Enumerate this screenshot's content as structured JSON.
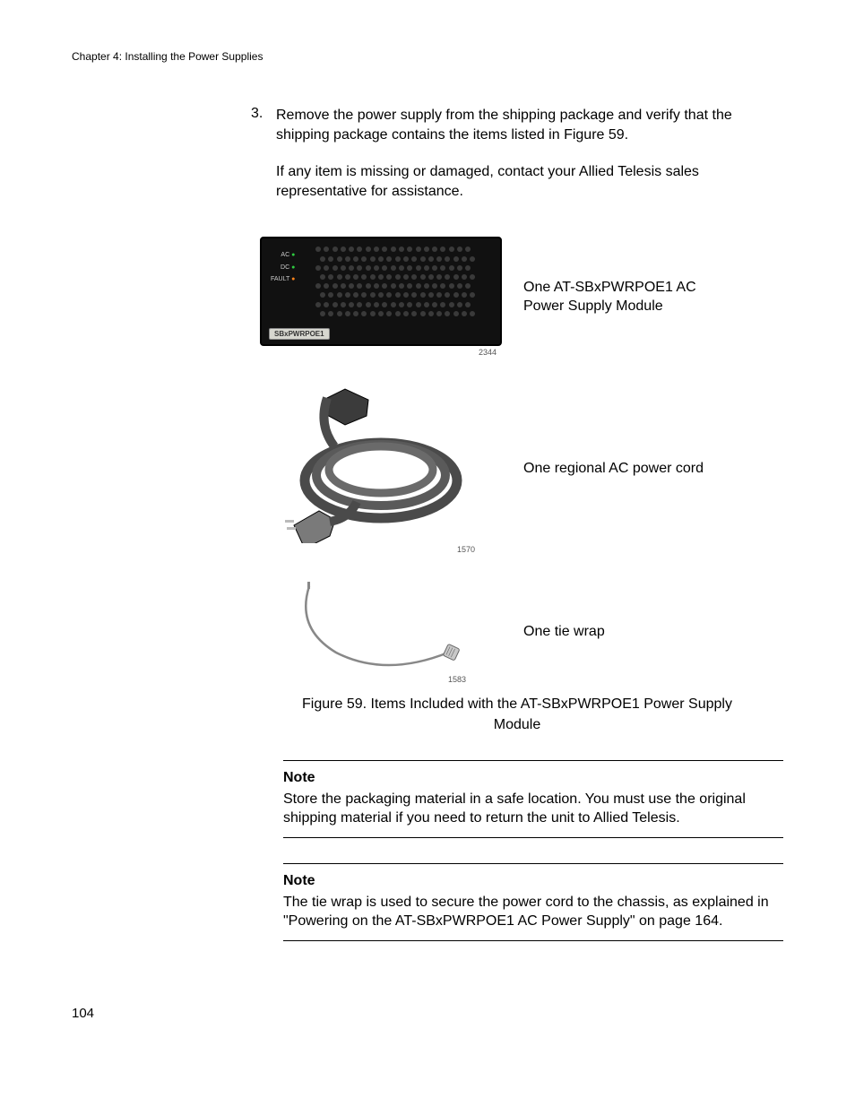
{
  "chapter_header": "Chapter 4: Installing the Power Supplies",
  "step": {
    "number": "3.",
    "para1": "Remove the power supply from the shipping package and verify that the shipping package contains the items listed in Figure 59.",
    "para2": "If any item is missing or damaged, contact your Allied Telesis sales representative for assistance."
  },
  "psu_illustration": {
    "leds": {
      "ac": "AC",
      "dc": "DC",
      "blank": "",
      "fault": "FAULT"
    },
    "tag_text": "SBxPWRPOE1",
    "vent_rows": 8,
    "vent_cols": 19,
    "img_number": "2344"
  },
  "cord_illustration": {
    "img_number": "1570"
  },
  "tie_illustration": {
    "img_number": "1583"
  },
  "items": {
    "psu_label_l1": "One AT-SBxPWRPOE1 AC",
    "psu_label_l2": "Power Supply Module",
    "cord_label": "One regional AC power cord",
    "tie_label": "One tie wrap"
  },
  "figure_caption_l1": "Figure 59. Items Included with the AT-SBxPWRPOE1 Power Supply",
  "figure_caption_l2": "Module",
  "note1": {
    "label": "Note",
    "body": "Store the packaging material in a safe location. You must use the original shipping material if you need to return the unit to Allied Telesis."
  },
  "note2": {
    "label": "Note",
    "body": "The tie wrap is used to secure the power cord to the chassis, as explained in \"Powering on the AT-SBxPWRPOE1 AC Power Supply\" on page 164."
  },
  "page_number": "104",
  "colors": {
    "text": "#000000",
    "background": "#ffffff",
    "psu_body": "#111111",
    "psu_hole": "#3a3a3a",
    "led_green": "#2ecc40",
    "led_amber": "#ff851b",
    "tag_bg": "#d7d7d0",
    "cord_stroke": "#4a4a4a",
    "cord_fill": "#6f6f6f",
    "tie_stroke": "#888888"
  }
}
